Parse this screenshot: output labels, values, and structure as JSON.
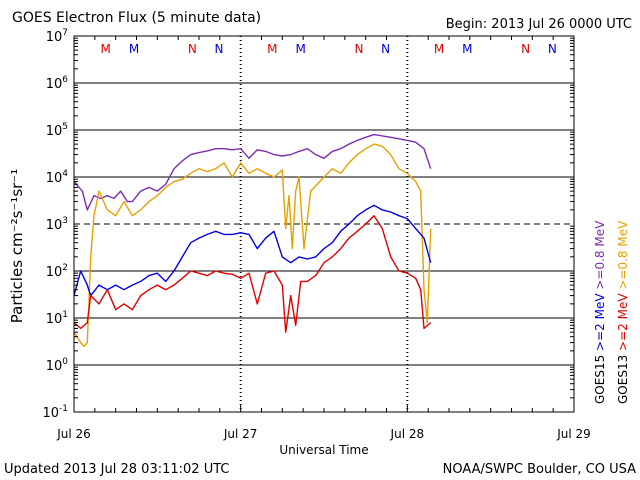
{
  "chart_data": {
    "type": "line",
    "title": "GOES Electron Flux (5 minute data)",
    "begin_label": "Begin: 2013 Jul 26 0000 UTC",
    "xlabel": "Universal Time",
    "ylabel": "Particles cm⁻²s⁻¹sr⁻¹",
    "x_unit": "days since 2013 Jul 26 0000 UTC",
    "x_range": [
      0,
      3
    ],
    "x_ticks": [
      {
        "x": 0,
        "label": "Jul 26"
      },
      {
        "x": 1,
        "label": "Jul 27"
      },
      {
        "x": 2,
        "label": "Jul 28"
      },
      {
        "x": 3,
        "label": "Jul 29"
      }
    ],
    "y_scale": "log",
    "y_range_exponent": [
      -1,
      7
    ],
    "y_ticks": [
      {
        "exp": 7,
        "base": "10",
        "sup": "7"
      },
      {
        "exp": 6,
        "base": "10",
        "sup": "6"
      },
      {
        "exp": 5,
        "base": "10",
        "sup": "5"
      },
      {
        "exp": 4,
        "base": "10",
        "sup": "4"
      },
      {
        "exp": 3,
        "base": "10",
        "sup": "3"
      },
      {
        "exp": 2,
        "base": "10",
        "sup": "2"
      },
      {
        "exp": 1,
        "base": "10",
        "sup": "1"
      },
      {
        "exp": 0,
        "base": "10",
        "sup": "0"
      },
      {
        "exp": -1,
        "base": "10",
        "sup": "-1"
      }
    ],
    "threshold_line_exponent": 3,
    "grid": "horizontal decades",
    "annotations": [
      {
        "label": "M",
        "x": 0.19,
        "color": "#e00000"
      },
      {
        "label": "M",
        "x": 0.36,
        "color": "#0000e0"
      },
      {
        "label": "N",
        "x": 0.71,
        "color": "#e00000"
      },
      {
        "label": "N",
        "x": 0.87,
        "color": "#0000e0"
      },
      {
        "label": "M",
        "x": 1.19,
        "color": "#e00000"
      },
      {
        "label": "M",
        "x": 1.36,
        "color": "#0000e0"
      },
      {
        "label": "N",
        "x": 1.71,
        "color": "#e00000"
      },
      {
        "label": "N",
        "x": 1.87,
        "color": "#0000e0"
      },
      {
        "label": "M",
        "x": 2.19,
        "color": "#e00000"
      },
      {
        "label": "M",
        "x": 2.36,
        "color": "#0000e0"
      },
      {
        "label": "N",
        "x": 2.71,
        "color": "#e00000"
      },
      {
        "label": "N",
        "x": 2.87,
        "color": "#0000e0"
      }
    ],
    "legend_placement": "right, rotated",
    "legend": [
      {
        "name": "GOES15 >=0.8 MeV",
        "sat": "GOES15",
        "energy": ">=0.8 MeV",
        "color": "#7a2cb0"
      },
      {
        "name": "GOES15 >=2 MeV",
        "sat": "GOES15",
        "energy": ">=2 MeV",
        "color": "#0000e0"
      },
      {
        "name": "GOES13 >=0.8 MeV",
        "sat": "GOES13",
        "energy": ">=0.8 MeV",
        "color": "#e8a000"
      },
      {
        "name": "GOES13 >=2 MeV",
        "sat": "GOES13",
        "energy": ">=2 MeV",
        "color": "#e00000"
      }
    ],
    "series": [
      {
        "name": "GOES15 >=0.8 MeV",
        "color": "#7a2cb0",
        "x": [
          0.0,
          0.05,
          0.08,
          0.12,
          0.16,
          0.2,
          0.24,
          0.28,
          0.32,
          0.35,
          0.4,
          0.45,
          0.5,
          0.55,
          0.6,
          0.65,
          0.7,
          0.75,
          0.8,
          0.85,
          0.9,
          0.95,
          1.0,
          1.05,
          1.1,
          1.15,
          1.2,
          1.25,
          1.3,
          1.35,
          1.4,
          1.45,
          1.5,
          1.55,
          1.6,
          1.65,
          1.7,
          1.75,
          1.8,
          1.85,
          1.9,
          1.95,
          2.0,
          2.05,
          2.1,
          2.14
        ],
        "y": [
          8000,
          5000,
          2000,
          4000,
          3500,
          4000,
          3500,
          5000,
          3000,
          3000,
          5000,
          6000,
          5000,
          7000,
          15000,
          22000,
          30000,
          33000,
          36000,
          40000,
          40000,
          38000,
          40000,
          25000,
          38000,
          35000,
          30000,
          28000,
          30000,
          35000,
          40000,
          30000,
          25000,
          35000,
          40000,
          50000,
          60000,
          70000,
          80000,
          75000,
          70000,
          65000,
          60000,
          55000,
          40000,
          15000
        ]
      },
      {
        "name": "GOES13 >=0.8 MeV",
        "color": "#e8a000",
        "x": [
          0.0,
          0.04,
          0.06,
          0.08,
          0.1,
          0.12,
          0.15,
          0.2,
          0.25,
          0.3,
          0.35,
          0.4,
          0.45,
          0.5,
          0.55,
          0.6,
          0.65,
          0.7,
          0.75,
          0.8,
          0.85,
          0.9,
          0.95,
          1.0,
          1.05,
          1.1,
          1.15,
          1.2,
          1.25,
          1.27,
          1.29,
          1.31,
          1.33,
          1.35,
          1.38,
          1.42,
          1.5,
          1.55,
          1.6,
          1.65,
          1.7,
          1.75,
          1.8,
          1.85,
          1.9,
          1.95,
          2.0,
          2.05,
          2.08,
          2.1,
          2.12,
          2.14
        ],
        "y": [
          5,
          3,
          2.5,
          3,
          200,
          1500,
          5000,
          2000,
          1500,
          3000,
          1500,
          2000,
          3000,
          4000,
          6000,
          8000,
          9000,
          12000,
          15000,
          13000,
          15000,
          20000,
          10000,
          20000,
          12000,
          15000,
          12000,
          10000,
          14000,
          800,
          4000,
          300,
          5000,
          10000,
          300,
          5000,
          10000,
          15000,
          12000,
          20000,
          30000,
          40000,
          50000,
          45000,
          30000,
          15000,
          12000,
          8000,
          5000,
          40,
          8,
          800
        ]
      },
      {
        "name": "GOES15 >=2 MeV",
        "color": "#0000e0",
        "x": [
          0.0,
          0.04,
          0.08,
          0.1,
          0.15,
          0.2,
          0.25,
          0.3,
          0.35,
          0.4,
          0.45,
          0.5,
          0.55,
          0.6,
          0.65,
          0.7,
          0.75,
          0.8,
          0.85,
          0.9,
          0.95,
          1.0,
          1.05,
          1.1,
          1.15,
          1.2,
          1.25,
          1.3,
          1.35,
          1.4,
          1.45,
          1.5,
          1.55,
          1.6,
          1.65,
          1.7,
          1.75,
          1.8,
          1.85,
          1.9,
          1.95,
          2.0,
          2.05,
          2.1,
          2.14
        ],
        "y": [
          30,
          100,
          50,
          30,
          50,
          40,
          50,
          40,
          50,
          60,
          80,
          90,
          60,
          100,
          200,
          400,
          500,
          600,
          700,
          600,
          600,
          650,
          600,
          300,
          500,
          700,
          200,
          150,
          200,
          180,
          200,
          300,
          400,
          700,
          1000,
          1500,
          2000,
          2500,
          2000,
          1800,
          1500,
          1300,
          800,
          500,
          150
        ]
      },
      {
        "name": "GOES13 >=2 MeV",
        "color": "#e00000",
        "x": [
          0.0,
          0.04,
          0.08,
          0.1,
          0.15,
          0.2,
          0.25,
          0.3,
          0.35,
          0.4,
          0.45,
          0.5,
          0.55,
          0.6,
          0.65,
          0.7,
          0.75,
          0.8,
          0.85,
          0.9,
          0.95,
          1.0,
          1.05,
          1.1,
          1.15,
          1.2,
          1.25,
          1.27,
          1.3,
          1.33,
          1.36,
          1.4,
          1.45,
          1.5,
          1.55,
          1.6,
          1.65,
          1.7,
          1.75,
          1.8,
          1.85,
          1.9,
          1.95,
          2.0,
          2.05,
          2.08,
          2.1,
          2.14
        ],
        "y": [
          8,
          6,
          8,
          30,
          20,
          40,
          15,
          20,
          15,
          30,
          40,
          50,
          40,
          50,
          70,
          100,
          90,
          80,
          100,
          90,
          85,
          70,
          90,
          20,
          90,
          100,
          50,
          5,
          30,
          7,
          60,
          60,
          80,
          150,
          200,
          300,
          500,
          700,
          1000,
          1500,
          800,
          200,
          100,
          90,
          70,
          40,
          6,
          8
        ]
      }
    ]
  },
  "footer": {
    "updated": "Updated 2013 Jul 28 03:11:02 UTC",
    "credit": "NOAA/SWPC Boulder, CO USA"
  },
  "colors": {
    "background": "#ffffff",
    "axes": "#000000"
  }
}
